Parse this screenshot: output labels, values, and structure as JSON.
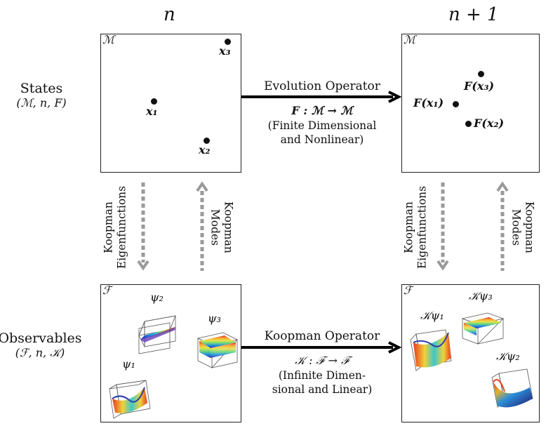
{
  "headers": {
    "left": "n",
    "right": "n + 1"
  },
  "rows": {
    "states": {
      "title": "States",
      "subtitle": "(ℳ, n, F)"
    },
    "observables": {
      "title": "Observables",
      "subtitle": "(ℱ, n, 𝒦)"
    }
  },
  "boxes": {
    "states_n": {
      "label": "ℳ",
      "points": [
        {
          "label": "x₃"
        },
        {
          "label": "x₁"
        },
        {
          "label": "x₂"
        }
      ]
    },
    "states_n1": {
      "label": "ℳ",
      "points": [
        {
          "label": "F(x₃)"
        },
        {
          "label": "F(x₁)"
        },
        {
          "label": "F(x₂)"
        }
      ]
    },
    "obs_n": {
      "label": "ℱ",
      "functions": [
        {
          "label": "ψ₂"
        },
        {
          "label": "ψ₃"
        },
        {
          "label": "ψ₁"
        }
      ]
    },
    "obs_n1": {
      "label": "ℱ",
      "functions": [
        {
          "label": "𝒦ψ₁"
        },
        {
          "label": "𝒦ψ₃"
        },
        {
          "label": "𝒦ψ₂"
        }
      ]
    }
  },
  "evolution": {
    "title": "Evolution Operator",
    "equation": "F  :  ℳ  →  ℳ",
    "note_line1": "(Finite Dimensional",
    "note_line2": "and Nonlinear)"
  },
  "koopman": {
    "title": "Koopman Operator",
    "equation": "𝒦  :  ℱ  →  ℱ",
    "note_line1": "(Infinite Dimen-",
    "note_line2": "sional and Linear)"
  },
  "vertical_labels": {
    "eigen_line1": "Koopman",
    "eigen_line2": "Eigenfunctions",
    "modes_line1": "Koopman",
    "modes_line2": "Modes"
  },
  "colors": {
    "arrow": "#000000",
    "dashed_arrow": "#9a9a9a",
    "point": "#111111"
  }
}
